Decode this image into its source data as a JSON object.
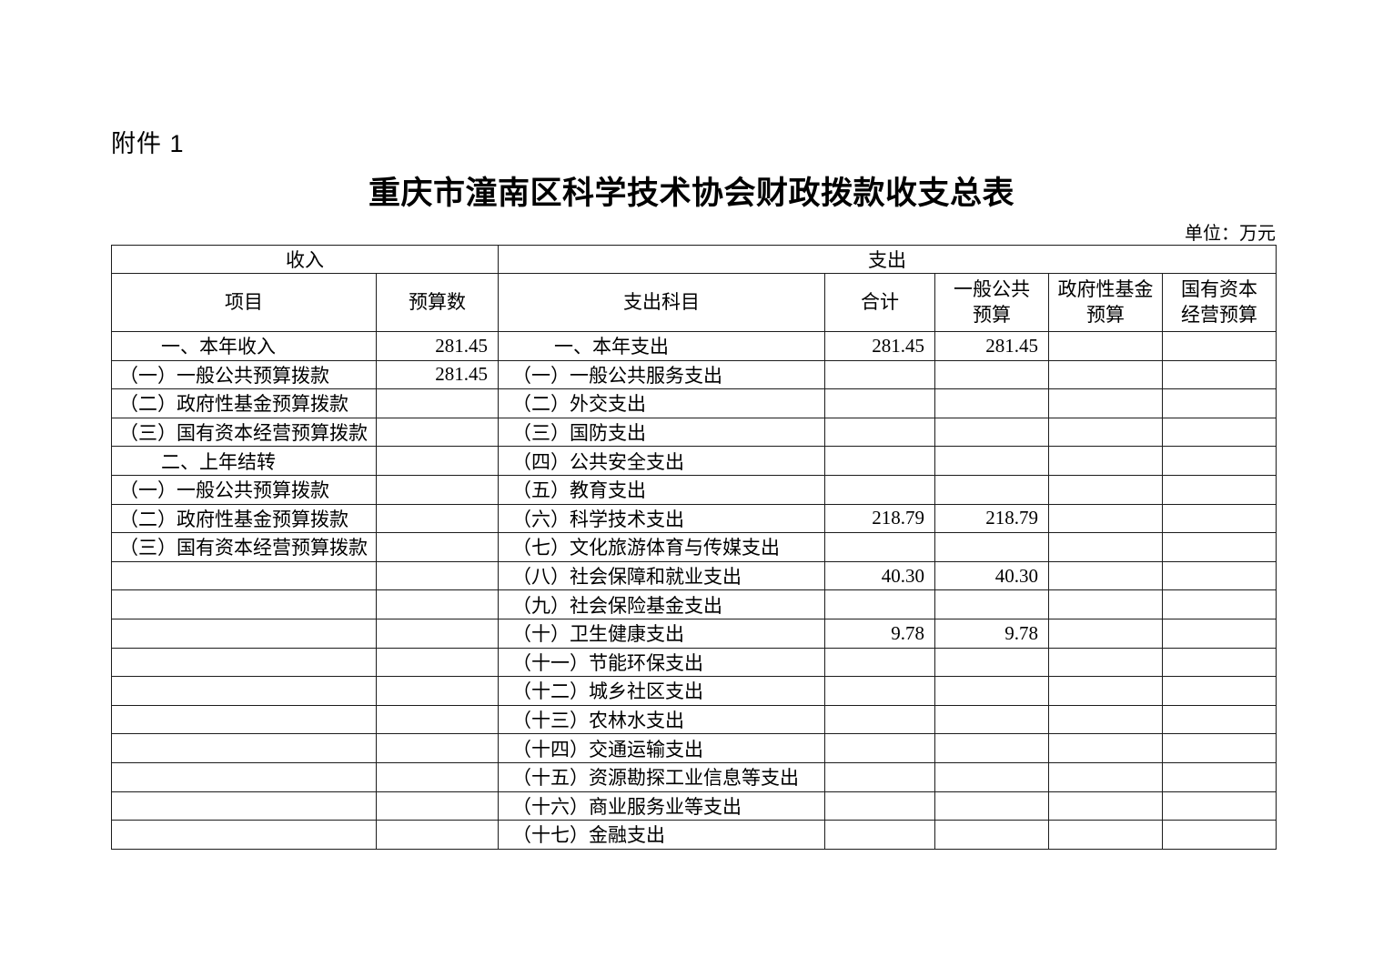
{
  "doc": {
    "attachment": "附件 1",
    "title": "重庆市潼南区科学技术协会财政拨款收支总表",
    "unit_label": "单位：万元"
  },
  "table": {
    "section_headers": {
      "income": "收入",
      "expense": "支出"
    },
    "columns": {
      "income_item": "项目",
      "income_budget": "预算数",
      "expense_item": "支出科目",
      "total": "合计",
      "general_public": "一般公共\n预算",
      "gov_fund": "政府性基金\n预算",
      "state_capital": "国有资本\n经营预算"
    },
    "rows": [
      {
        "income_item": "一、本年收入",
        "income_indent": true,
        "income_budget": "281.45",
        "expense_item": "一、本年支出",
        "expense_indent": true,
        "total": "281.45",
        "general_public": "281.45",
        "gov_fund": "",
        "state_capital": ""
      },
      {
        "income_item": "（一）一般公共预算拨款",
        "income_indent": false,
        "income_budget": "281.45",
        "expense_item": "（一）一般公共服务支出",
        "expense_indent": false,
        "total": "",
        "general_public": "",
        "gov_fund": "",
        "state_capital": ""
      },
      {
        "income_item": "（二）政府性基金预算拨款",
        "income_indent": false,
        "income_budget": "",
        "expense_item": "（二）外交支出",
        "expense_indent": false,
        "total": "",
        "general_public": "",
        "gov_fund": "",
        "state_capital": ""
      },
      {
        "income_item": "（三）国有资本经营预算拨款",
        "income_indent": false,
        "income_budget": "",
        "expense_item": "（三）国防支出",
        "expense_indent": false,
        "total": "",
        "general_public": "",
        "gov_fund": "",
        "state_capital": ""
      },
      {
        "income_item": "二、上年结转",
        "income_indent": true,
        "income_budget": "",
        "expense_item": "（四）公共安全支出",
        "expense_indent": false,
        "total": "",
        "general_public": "",
        "gov_fund": "",
        "state_capital": ""
      },
      {
        "income_item": "（一）一般公共预算拨款",
        "income_indent": false,
        "income_budget": "",
        "expense_item": "（五）教育支出",
        "expense_indent": false,
        "total": "",
        "general_public": "",
        "gov_fund": "",
        "state_capital": ""
      },
      {
        "income_item": "（二）政府性基金预算拨款",
        "income_indent": false,
        "income_budget": "",
        "expense_item": "（六）科学技术支出",
        "expense_indent": false,
        "total": "218.79",
        "general_public": "218.79",
        "gov_fund": "",
        "state_capital": ""
      },
      {
        "income_item": "（三）国有资本经营预算拨款",
        "income_indent": false,
        "income_budget": "",
        "expense_item": "（七）文化旅游体育与传媒支出",
        "expense_indent": false,
        "total": "",
        "general_public": "",
        "gov_fund": "",
        "state_capital": ""
      },
      {
        "income_item": "",
        "income_indent": false,
        "income_budget": "",
        "expense_item": "（八）社会保障和就业支出",
        "expense_indent": false,
        "total": "40.30",
        "general_public": "40.30",
        "gov_fund": "",
        "state_capital": ""
      },
      {
        "income_item": "",
        "income_indent": false,
        "income_budget": "",
        "expense_item": "（九）社会保险基金支出",
        "expense_indent": false,
        "total": "",
        "general_public": "",
        "gov_fund": "",
        "state_capital": ""
      },
      {
        "income_item": "",
        "income_indent": false,
        "income_budget": "",
        "expense_item": "（十）卫生健康支出",
        "expense_indent": false,
        "total": "9.78",
        "general_public": "9.78",
        "gov_fund": "",
        "state_capital": ""
      },
      {
        "income_item": "",
        "income_indent": false,
        "income_budget": "",
        "expense_item": "（十一）节能环保支出",
        "expense_indent": false,
        "total": "",
        "general_public": "",
        "gov_fund": "",
        "state_capital": ""
      },
      {
        "income_item": "",
        "income_indent": false,
        "income_budget": "",
        "expense_item": "（十二）城乡社区支出",
        "expense_indent": false,
        "total": "",
        "general_public": "",
        "gov_fund": "",
        "state_capital": ""
      },
      {
        "income_item": "",
        "income_indent": false,
        "income_budget": "",
        "expense_item": "（十三）农林水支出",
        "expense_indent": false,
        "total": "",
        "general_public": "",
        "gov_fund": "",
        "state_capital": ""
      },
      {
        "income_item": "",
        "income_indent": false,
        "income_budget": "",
        "expense_item": "（十四）交通运输支出",
        "expense_indent": false,
        "total": "",
        "general_public": "",
        "gov_fund": "",
        "state_capital": ""
      },
      {
        "income_item": "",
        "income_indent": false,
        "income_budget": "",
        "expense_item": "（十五）资源勘探工业信息等支出",
        "expense_indent": false,
        "total": "",
        "general_public": "",
        "gov_fund": "",
        "state_capital": ""
      },
      {
        "income_item": "",
        "income_indent": false,
        "income_budget": "",
        "expense_item": "（十六）商业服务业等支出",
        "expense_indent": false,
        "total": "",
        "general_public": "",
        "gov_fund": "",
        "state_capital": ""
      },
      {
        "income_item": "",
        "income_indent": false,
        "income_budget": "",
        "expense_item": "（十七）金融支出",
        "expense_indent": false,
        "total": "",
        "general_public": "",
        "gov_fund": "",
        "state_capital": ""
      }
    ]
  }
}
